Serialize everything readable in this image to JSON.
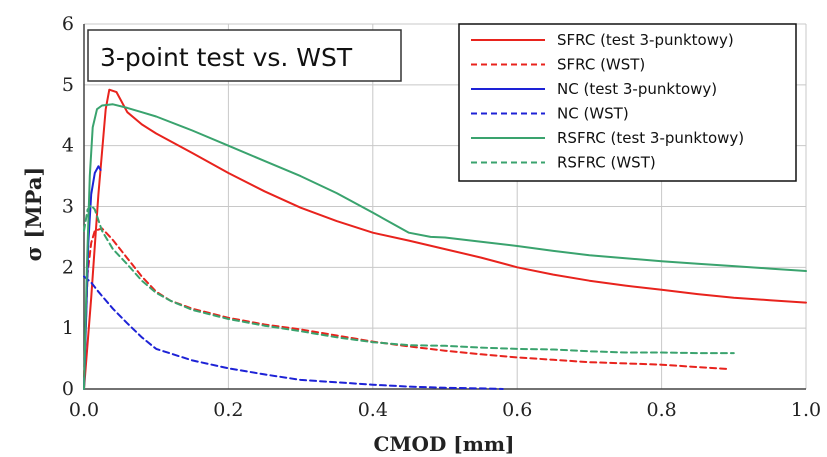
{
  "chart_data": {
    "type": "line",
    "title": "3-point test vs. WST",
    "xlabel": "CMOD [mm]",
    "ylabel": "σ [MPa]",
    "xlim": [
      0,
      1.0
    ],
    "ylim": [
      0,
      6
    ],
    "xticks": [
      "0.0",
      "0.2",
      "0.4",
      "0.6",
      "0.8",
      "1.0"
    ],
    "yticks": [
      "0",
      "1",
      "2",
      "3",
      "4",
      "5",
      "6"
    ],
    "grid": true,
    "legend_position": "top-right",
    "series": [
      {
        "name": "SFRC (test 3-punktowy)",
        "color": "#e8231d",
        "dash": "solid",
        "points": [
          [
            0,
            0
          ],
          [
            0.01,
            1.5
          ],
          [
            0.02,
            3.2
          ],
          [
            0.03,
            4.6
          ],
          [
            0.035,
            4.92
          ],
          [
            0.045,
            4.88
          ],
          [
            0.06,
            4.55
          ],
          [
            0.08,
            4.35
          ],
          [
            0.1,
            4.2
          ],
          [
            0.15,
            3.88
          ],
          [
            0.2,
            3.55
          ],
          [
            0.25,
            3.25
          ],
          [
            0.3,
            2.98
          ],
          [
            0.35,
            2.76
          ],
          [
            0.4,
            2.57
          ],
          [
            0.45,
            2.44
          ],
          [
            0.5,
            2.3
          ],
          [
            0.55,
            2.16
          ],
          [
            0.6,
            2.0
          ],
          [
            0.65,
            1.88
          ],
          [
            0.7,
            1.78
          ],
          [
            0.75,
            1.7
          ],
          [
            0.8,
            1.63
          ],
          [
            0.85,
            1.56
          ],
          [
            0.9,
            1.5
          ],
          [
            0.95,
            1.46
          ],
          [
            1.0,
            1.42
          ]
        ]
      },
      {
        "name": "SFRC (WST)",
        "color": "#e8231d",
        "dash": "dashed",
        "points": [
          [
            0,
            0.2
          ],
          [
            0.005,
            1.9
          ],
          [
            0.01,
            2.4
          ],
          [
            0.015,
            2.6
          ],
          [
            0.025,
            2.64
          ],
          [
            0.04,
            2.45
          ],
          [
            0.06,
            2.15
          ],
          [
            0.08,
            1.85
          ],
          [
            0.1,
            1.6
          ],
          [
            0.12,
            1.45
          ],
          [
            0.15,
            1.32
          ],
          [
            0.2,
            1.17
          ],
          [
            0.25,
            1.06
          ],
          [
            0.3,
            0.98
          ],
          [
            0.35,
            0.88
          ],
          [
            0.4,
            0.78
          ],
          [
            0.45,
            0.7
          ],
          [
            0.5,
            0.63
          ],
          [
            0.55,
            0.57
          ],
          [
            0.6,
            0.52
          ],
          [
            0.65,
            0.48
          ],
          [
            0.7,
            0.44
          ],
          [
            0.75,
            0.42
          ],
          [
            0.8,
            0.4
          ],
          [
            0.85,
            0.36
          ],
          [
            0.89,
            0.33
          ]
        ]
      },
      {
        "name": "NC (test 3-punktowy)",
        "color": "#1d22d6",
        "dash": "solid",
        "points": [
          [
            0,
            0
          ],
          [
            0.003,
            1.2
          ],
          [
            0.006,
            2.4
          ],
          [
            0.01,
            3.2
          ],
          [
            0.015,
            3.55
          ],
          [
            0.02,
            3.66
          ],
          [
            0.023,
            3.6
          ]
        ]
      },
      {
        "name": "NC (WST)",
        "color": "#1d22d6",
        "dash": "dashed",
        "points": [
          [
            0,
            1.85
          ],
          [
            0.01,
            1.75
          ],
          [
            0.02,
            1.6
          ],
          [
            0.04,
            1.32
          ],
          [
            0.06,
            1.08
          ],
          [
            0.08,
            0.85
          ],
          [
            0.1,
            0.66
          ],
          [
            0.15,
            0.47
          ],
          [
            0.2,
            0.34
          ],
          [
            0.25,
            0.24
          ],
          [
            0.3,
            0.15
          ],
          [
            0.35,
            0.11
          ],
          [
            0.4,
            0.07
          ],
          [
            0.45,
            0.04
          ],
          [
            0.5,
            0.02
          ],
          [
            0.55,
            0.01
          ],
          [
            0.58,
            0.0
          ]
        ]
      },
      {
        "name": "RSFRC (test 3-punktowy)",
        "color": "#3aa36e",
        "dash": "solid",
        "points": [
          [
            0,
            0
          ],
          [
            0.004,
            2.0
          ],
          [
            0.008,
            3.5
          ],
          [
            0.012,
            4.3
          ],
          [
            0.018,
            4.6
          ],
          [
            0.025,
            4.66
          ],
          [
            0.04,
            4.68
          ],
          [
            0.06,
            4.62
          ],
          [
            0.08,
            4.55
          ],
          [
            0.1,
            4.48
          ],
          [
            0.15,
            4.25
          ],
          [
            0.2,
            4.0
          ],
          [
            0.25,
            3.75
          ],
          [
            0.3,
            3.5
          ],
          [
            0.35,
            3.22
          ],
          [
            0.4,
            2.9
          ],
          [
            0.43,
            2.7
          ],
          [
            0.45,
            2.57
          ],
          [
            0.48,
            2.5
          ],
          [
            0.5,
            2.49
          ],
          [
            0.55,
            2.42
          ],
          [
            0.6,
            2.35
          ],
          [
            0.65,
            2.27
          ],
          [
            0.7,
            2.2
          ],
          [
            0.75,
            2.15
          ],
          [
            0.8,
            2.1
          ],
          [
            0.85,
            2.06
          ],
          [
            0.9,
            2.02
          ],
          [
            0.95,
            1.98
          ],
          [
            1.0,
            1.94
          ]
        ]
      },
      {
        "name": "RSFRC (WST)",
        "color": "#3aa36e",
        "dash": "dashed",
        "points": [
          [
            0,
            2.6
          ],
          [
            0.005,
            2.95
          ],
          [
            0.01,
            3.02
          ],
          [
            0.015,
            2.95
          ],
          [
            0.025,
            2.6
          ],
          [
            0.04,
            2.3
          ],
          [
            0.06,
            2.05
          ],
          [
            0.08,
            1.78
          ],
          [
            0.1,
            1.58
          ],
          [
            0.12,
            1.45
          ],
          [
            0.15,
            1.3
          ],
          [
            0.2,
            1.15
          ],
          [
            0.25,
            1.04
          ],
          [
            0.3,
            0.95
          ],
          [
            0.35,
            0.85
          ],
          [
            0.4,
            0.77
          ],
          [
            0.45,
            0.72
          ],
          [
            0.5,
            0.71
          ],
          [
            0.55,
            0.68
          ],
          [
            0.6,
            0.66
          ],
          [
            0.65,
            0.65
          ],
          [
            0.7,
            0.62
          ],
          [
            0.75,
            0.6
          ],
          [
            0.8,
            0.6
          ],
          [
            0.85,
            0.59
          ],
          [
            0.9,
            0.59
          ]
        ]
      }
    ]
  }
}
